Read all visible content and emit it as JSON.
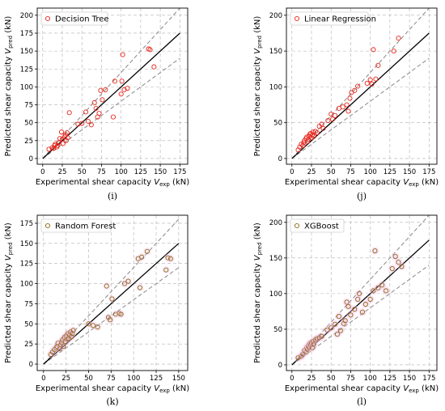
{
  "figure": {
    "panels": [
      {
        "caption": "(i)",
        "legend": "Decision Tree",
        "xlabel": "Experimental shear capacity",
        "xsub": "exp",
        "ylabel": "Predicted shear capacity",
        "ysub": "pred",
        "unit": "(kN)"
      },
      {
        "caption": "(j)",
        "legend": "Linear Regression",
        "xlabel": "Experimental shear capacity",
        "xsub": "exp",
        "ylabel": "Predicted shear capacity",
        "ysub": "pred",
        "unit": "(kN)"
      },
      {
        "caption": "(k)",
        "legend": "Random Forest",
        "xlabel": "Experimental shear capacity",
        "xsub": "exp",
        "ylabel": "Predicted shear capacity",
        "ysub": "pred",
        "unit": "(kN)"
      },
      {
        "caption": "(l)",
        "legend": "XGBoost",
        "xlabel": "Experimental shear capacity",
        "xsub": "exp",
        "ylabel": "Predicted shear capacity",
        "ysub": "pred",
        "unit": "(kN)"
      }
    ]
  },
  "chart_data": [
    {
      "type": "scatter",
      "title": "",
      "legend": "Decision Tree",
      "marker_color": "#e8281e",
      "xlabel": "Experimental shear capacity V_exp (kN)",
      "ylabel": "Predicted shear capacity V_pred (kN)",
      "xlim": [
        0,
        175
      ],
      "ylim": [
        0,
        200
      ],
      "xticks": [
        0,
        25,
        50,
        75,
        100,
        125,
        150,
        175
      ],
      "yticks": [
        0,
        25,
        50,
        75,
        100,
        125,
        150,
        175,
        200
      ],
      "grid": true,
      "legend_position": "top-left",
      "reference_line": "y = x",
      "bound_lines": "±20%",
      "points": [
        [
          8,
          13
        ],
        [
          12,
          15
        ],
        [
          14,
          14
        ],
        [
          15,
          18
        ],
        [
          16,
          20
        ],
        [
          18,
          16
        ],
        [
          19,
          18
        ],
        [
          20,
          22
        ],
        [
          22,
          28
        ],
        [
          24,
          37
        ],
        [
          25,
          27
        ],
        [
          26,
          21
        ],
        [
          28,
          30
        ],
        [
          29,
          33
        ],
        [
          30,
          25
        ],
        [
          31,
          36
        ],
        [
          32,
          29
        ],
        [
          34,
          64
        ],
        [
          45,
          48
        ],
        [
          50,
          49
        ],
        [
          55,
          65
        ],
        [
          58,
          52
        ],
        [
          62,
          47
        ],
        [
          66,
          78
        ],
        [
          68,
          70
        ],
        [
          70,
          58
        ],
        [
          72,
          63
        ],
        [
          74,
          95
        ],
        [
          76,
          82
        ],
        [
          80,
          96
        ],
        [
          90,
          58
        ],
        [
          92,
          108
        ],
        [
          100,
          90
        ],
        [
          101,
          108
        ],
        [
          102,
          145
        ],
        [
          104,
          96
        ],
        [
          108,
          98
        ],
        [
          135,
          153
        ],
        [
          137,
          152
        ],
        [
          142,
          128
        ]
      ]
    },
    {
      "type": "scatter",
      "title": "",
      "legend": "Linear Regression",
      "marker_color": "#e8281e",
      "xlabel": "Experimental shear capacity V_exp (kN)",
      "ylabel": "Predicted shear capacity V_pred (kN)",
      "xlim": [
        0,
        175
      ],
      "ylim": [
        0,
        200
      ],
      "xticks": [
        0,
        25,
        50,
        75,
        100,
        125,
        150,
        175
      ],
      "yticks": [
        0,
        50,
        100,
        150,
        200
      ],
      "grid": true,
      "legend_position": "top-left",
      "reference_line": "y = x",
      "bound_lines": "±20%",
      "points": [
        [
          8,
          12
        ],
        [
          10,
          16
        ],
        [
          12,
          20
        ],
        [
          14,
          18
        ],
        [
          15,
          22
        ],
        [
          16,
          25
        ],
        [
          18,
          28
        ],
        [
          19,
          30
        ],
        [
          20,
          24
        ],
        [
          21,
          27
        ],
        [
          22,
          31
        ],
        [
          23,
          34
        ],
        [
          24,
          35
        ],
        [
          25,
          29
        ],
        [
          26,
          33
        ],
        [
          27,
          37
        ],
        [
          28,
          31
        ],
        [
          30,
          38
        ],
        [
          32,
          36
        ],
        [
          35,
          45
        ],
        [
          38,
          48
        ],
        [
          40,
          42
        ],
        [
          46,
          53
        ],
        [
          50,
          62
        ],
        [
          52,
          55
        ],
        [
          55,
          60
        ],
        [
          60,
          70
        ],
        [
          65,
          72
        ],
        [
          70,
          75
        ],
        [
          72,
          66
        ],
        [
          74,
          84
        ],
        [
          76,
          92
        ],
        [
          80,
          95
        ],
        [
          84,
          101
        ],
        [
          96,
          105
        ],
        [
          100,
          110
        ],
        [
          102,
          104
        ],
        [
          104,
          152
        ],
        [
          107,
          111
        ],
        [
          110,
          130
        ],
        [
          130,
          150
        ],
        [
          136,
          168
        ]
      ]
    },
    {
      "type": "scatter",
      "title": "",
      "legend": "Random Forest",
      "marker_color": "#8b6914",
      "xlabel": "Experimental shear capacity V_exp (kN)",
      "ylabel": "Predicted shear capacity V_pred (kN)",
      "xlim": [
        0,
        150
      ],
      "ylim": [
        0,
        175
      ],
      "xticks": [
        0,
        25,
        50,
        75,
        100,
        125,
        150
      ],
      "yticks": [
        0,
        25,
        50,
        75,
        100,
        125,
        150,
        175
      ],
      "grid": true,
      "legend_position": "top-left",
      "reference_line": "y = x",
      "bound_lines": "±20%",
      "points": [
        [
          8,
          12
        ],
        [
          10,
          15
        ],
        [
          12,
          18
        ],
        [
          14,
          20
        ],
        [
          15,
          22
        ],
        [
          16,
          26
        ],
        [
          18,
          19
        ],
        [
          19,
          24
        ],
        [
          20,
          27
        ],
        [
          21,
          30
        ],
        [
          22,
          22
        ],
        [
          23,
          33
        ],
        [
          24,
          28
        ],
        [
          25,
          35
        ],
        [
          26,
          31
        ],
        [
          27,
          38
        ],
        [
          28,
          32
        ],
        [
          29,
          36
        ],
        [
          30,
          40
        ],
        [
          31,
          34
        ],
        [
          32,
          38
        ],
        [
          33,
          42
        ],
        [
          50,
          50
        ],
        [
          55,
          48
        ],
        [
          60,
          46
        ],
        [
          70,
          97
        ],
        [
          72,
          58
        ],
        [
          74,
          55
        ],
        [
          76,
          81
        ],
        [
          80,
          62
        ],
        [
          84,
          63
        ],
        [
          86,
          62
        ],
        [
          90,
          100
        ],
        [
          94,
          103
        ],
        [
          105,
          131
        ],
        [
          107,
          95
        ],
        [
          109,
          133
        ],
        [
          115,
          140
        ],
        [
          136,
          117
        ],
        [
          138,
          132
        ],
        [
          141,
          131
        ]
      ]
    },
    {
      "type": "scatter",
      "title": "",
      "legend": "XGBoost",
      "marker_color": "#8b6914",
      "xlabel": "Experimental shear capacity V_exp (kN)",
      "ylabel": "Predicted shear capacity V_pred (kN)",
      "xlim": [
        0,
        175
      ],
      "ylim": [
        0,
        200
      ],
      "xticks": [
        0,
        25,
        50,
        75,
        100,
        125,
        150,
        175
      ],
      "yticks": [
        0,
        50,
        100,
        150,
        200
      ],
      "grid": true,
      "legend_position": "top-left",
      "reference_line": "y = x",
      "bound_lines": "±20%",
      "points": [
        [
          8,
          10
        ],
        [
          12,
          12
        ],
        [
          14,
          15
        ],
        [
          16,
          20
        ],
        [
          18,
          18
        ],
        [
          19,
          24
        ],
        [
          20,
          22
        ],
        [
          21,
          27
        ],
        [
          22,
          25
        ],
        [
          23,
          30
        ],
        [
          24,
          28
        ],
        [
          25,
          31
        ],
        [
          26,
          24
        ],
        [
          27,
          33
        ],
        [
          28,
          29
        ],
        [
          30,
          35
        ],
        [
          32,
          37
        ],
        [
          35,
          38
        ],
        [
          38,
          40
        ],
        [
          45,
          49
        ],
        [
          50,
          52
        ],
        [
          55,
          57
        ],
        [
          58,
          43
        ],
        [
          60,
          68
        ],
        [
          62,
          48
        ],
        [
          66,
          58
        ],
        [
          68,
          62
        ],
        [
          70,
          88
        ],
        [
          72,
          82
        ],
        [
          75,
          70
        ],
        [
          80,
          78
        ],
        [
          84,
          92
        ],
        [
          86,
          100
        ],
        [
          90,
          74
        ],
        [
          94,
          85
        ],
        [
          100,
          92
        ],
        [
          104,
          104
        ],
        [
          106,
          160
        ],
        [
          110,
          108
        ],
        [
          115,
          112
        ],
        [
          120,
          104
        ],
        [
          128,
          135
        ],
        [
          132,
          152
        ],
        [
          136,
          144
        ],
        [
          140,
          138
        ]
      ]
    }
  ]
}
